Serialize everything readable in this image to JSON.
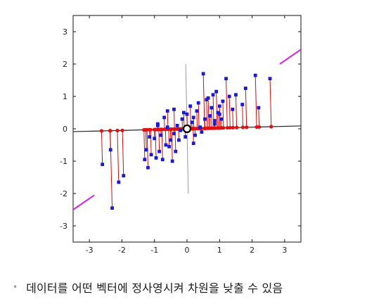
{
  "chart_data": {
    "type": "scatter",
    "title": "",
    "xlabel": "",
    "ylabel": "",
    "xlim": [
      -3.5,
      3.5
    ],
    "ylim": [
      -3.5,
      3.5
    ],
    "x_ticks": [
      "-3",
      "-2",
      "-1",
      "0",
      "1",
      "2",
      "3"
    ],
    "y_ticks": [
      "3",
      "2",
      "1",
      "0",
      "-1",
      "-2",
      "-3"
    ],
    "grid": false,
    "projection_direction": [
      0.995,
      0.025
    ],
    "colors": {
      "data_point": "#1a1ad6",
      "projected_point": "#e01010",
      "projection_line": "#cc1010",
      "principal_axis": "#222222",
      "secondary_axis": "#999999",
      "diagonal_line": "#dd22dd"
    },
    "series": [
      {
        "x": [
          -2.6,
          -2.35,
          -2.3,
          -2.1,
          -1.95,
          -1.3,
          -1.25,
          -1.2,
          -1.15,
          -1.1,
          -1.0,
          -0.95,
          -0.9,
          -0.85,
          -0.8,
          -0.75,
          -0.7,
          -0.65,
          -0.6,
          -0.55,
          -0.5,
          -0.45,
          -0.4,
          -0.35,
          -0.3,
          -0.25,
          -0.2,
          -0.15,
          -0.1,
          -0.05,
          0.0,
          0.05,
          0.1,
          0.15,
          0.2,
          0.25,
          0.3,
          0.35,
          0.4,
          0.5,
          0.55,
          0.6,
          0.7,
          0.75,
          0.8,
          0.85,
          0.9,
          0.95,
          1.0,
          1.05,
          1.1,
          1.2,
          1.3,
          1.4,
          1.5,
          1.7,
          1.8,
          2.1,
          2.2,
          2.55,
          -0.9,
          -0.6,
          -0.4,
          0.2,
          0.45,
          0.65,
          0.85,
          1.0
        ],
        "values": [
          -1.1,
          -0.65,
          -2.45,
          -1.65,
          -1.45,
          -0.95,
          -0.65,
          -1.2,
          -0.25,
          -0.8,
          -0.3,
          -0.9,
          0.1,
          -0.7,
          -0.2,
          -0.95,
          0.35,
          -0.5,
          0.55,
          -0.55,
          -0.35,
          -1.0,
          -0.15,
          -0.7,
          0.1,
          -0.35,
          -0.05,
          0.3,
          0.5,
          -0.25,
          0.45,
          0.0,
          0.7,
          0.2,
          -0.45,
          -0.2,
          0.55,
          0.8,
          0.05,
          1.7,
          0.3,
          0.9,
          0.4,
          0.65,
          1.05,
          0.25,
          1.15,
          0.5,
          0.7,
          0.3,
          0.85,
          1.55,
          1.0,
          0.6,
          1.05,
          0.75,
          1.25,
          1.65,
          0.65,
          1.55,
          0.15,
          0.05,
          0.6,
          0.35,
          -0.1,
          0.95,
          0.15,
          0.45
        ]
      }
    ],
    "center_point": [
      0.0,
      0.0
    ]
  },
  "caption": {
    "bullet": "•",
    "text": "데이터를 어떤 벡터에 정사영시켜 차원을 낮출 수 있음"
  }
}
